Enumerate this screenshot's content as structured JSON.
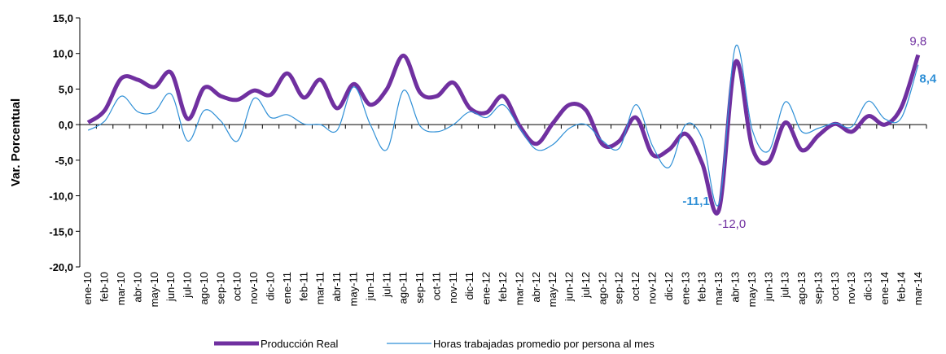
{
  "chart_data": {
    "type": "line",
    "y_axis_label": "Var. Porcentual",
    "categories": [
      "ene-10",
      "feb-10",
      "mar-10",
      "abr-10",
      "may-10",
      "jun-10",
      "jul-10",
      "ago-10",
      "sep-10",
      "oct-10",
      "nov-10",
      "dic-10",
      "ene-11",
      "feb-11",
      "mar-11",
      "abr-11",
      "may-11",
      "jun-11",
      "jul-11",
      "ago-11",
      "sep-11",
      "oct-11",
      "nov-11",
      "dic-11",
      "ene-12",
      "feb-12",
      "mar-12",
      "abr-12",
      "may-12",
      "jun-12",
      "jul-12",
      "ago-12",
      "sep-12",
      "oct-12",
      "nov-12",
      "dic-12",
      "ene-13",
      "feb-13",
      "mar-13",
      "abr-13",
      "may-13",
      "jun-13",
      "jul-13",
      "ago-13",
      "sep-13",
      "oct-13",
      "nov-13",
      "dic-13",
      "ene-14",
      "feb-14",
      "mar-14"
    ],
    "series": [
      {
        "name": "Producción Real",
        "color": "#7030a0",
        "values": [
          0.3,
          2.0,
          6.5,
          6.3,
          5.3,
          7.3,
          0.8,
          5.2,
          4.0,
          3.5,
          4.8,
          4.2,
          7.2,
          3.8,
          6.3,
          2.3,
          5.7,
          2.8,
          5.0,
          9.7,
          4.5,
          4.0,
          5.9,
          2.3,
          1.7,
          4.0,
          -0.2,
          -2.7,
          0.2,
          2.8,
          2.0,
          -2.8,
          -2.3,
          1.0,
          -4.2,
          -3.5,
          -1.3,
          -5.5,
          -12.0,
          8.8,
          -3.2,
          -5.2,
          0.3,
          -3.6,
          -1.5,
          0.1,
          -1.0,
          1.2,
          0.0,
          2.5,
          9.8
        ],
        "value_labels": [
          null,
          null,
          null,
          null,
          null,
          null,
          null,
          null,
          null,
          null,
          null,
          null,
          null,
          null,
          null,
          null,
          null,
          null,
          null,
          null,
          null,
          null,
          null,
          null,
          null,
          null,
          null,
          null,
          null,
          null,
          null,
          null,
          null,
          null,
          null,
          null,
          null,
          null,
          "-12,0",
          null,
          null,
          null,
          null,
          null,
          null,
          null,
          null,
          null,
          null,
          null,
          "9,8"
        ]
      },
      {
        "name": "Horas trabajadas promedio por persona al mes",
        "color": "#2e8fd6",
        "values": [
          -0.8,
          0.5,
          4.0,
          1.8,
          1.8,
          4.3,
          -2.3,
          2.0,
          0.5,
          -2.3,
          3.7,
          1.0,
          1.4,
          0.1,
          0.0,
          -0.8,
          5.3,
          0.0,
          -3.5,
          4.8,
          -0.2,
          -1.0,
          0.0,
          1.8,
          1.0,
          2.8,
          -0.5,
          -3.5,
          -2.8,
          -0.5,
          0.0,
          -2.3,
          -3.3,
          2.8,
          -3.0,
          -6.0,
          0.0,
          -2.0,
          -11.1,
          11.0,
          -0.7,
          -3.7,
          3.2,
          -1.0,
          -0.5,
          0.2,
          -0.3,
          3.3,
          0.8,
          1.0,
          8.4
        ],
        "value_labels": [
          null,
          null,
          null,
          null,
          null,
          null,
          null,
          null,
          null,
          null,
          null,
          null,
          null,
          null,
          null,
          null,
          null,
          null,
          null,
          null,
          null,
          null,
          null,
          null,
          null,
          null,
          null,
          null,
          null,
          null,
          null,
          null,
          null,
          null,
          null,
          null,
          null,
          null,
          "-11,1",
          null,
          null,
          null,
          null,
          null,
          null,
          null,
          null,
          null,
          null,
          null,
          "8,4"
        ]
      }
    ],
    "ylim": [
      -20,
      15
    ],
    "yticks": [
      {
        "value": -20,
        "label": "-20,0"
      },
      {
        "value": -15,
        "label": "-15,0"
      },
      {
        "value": -10,
        "label": "-10,0"
      },
      {
        "value": -5,
        "label": "-5,0"
      },
      {
        "value": 0,
        "label": "0,0"
      },
      {
        "value": 5,
        "label": "5,0"
      },
      {
        "value": 10,
        "label": "10,0"
      },
      {
        "value": 15,
        "label": "15,0"
      }
    ],
    "legend": "bottom"
  }
}
